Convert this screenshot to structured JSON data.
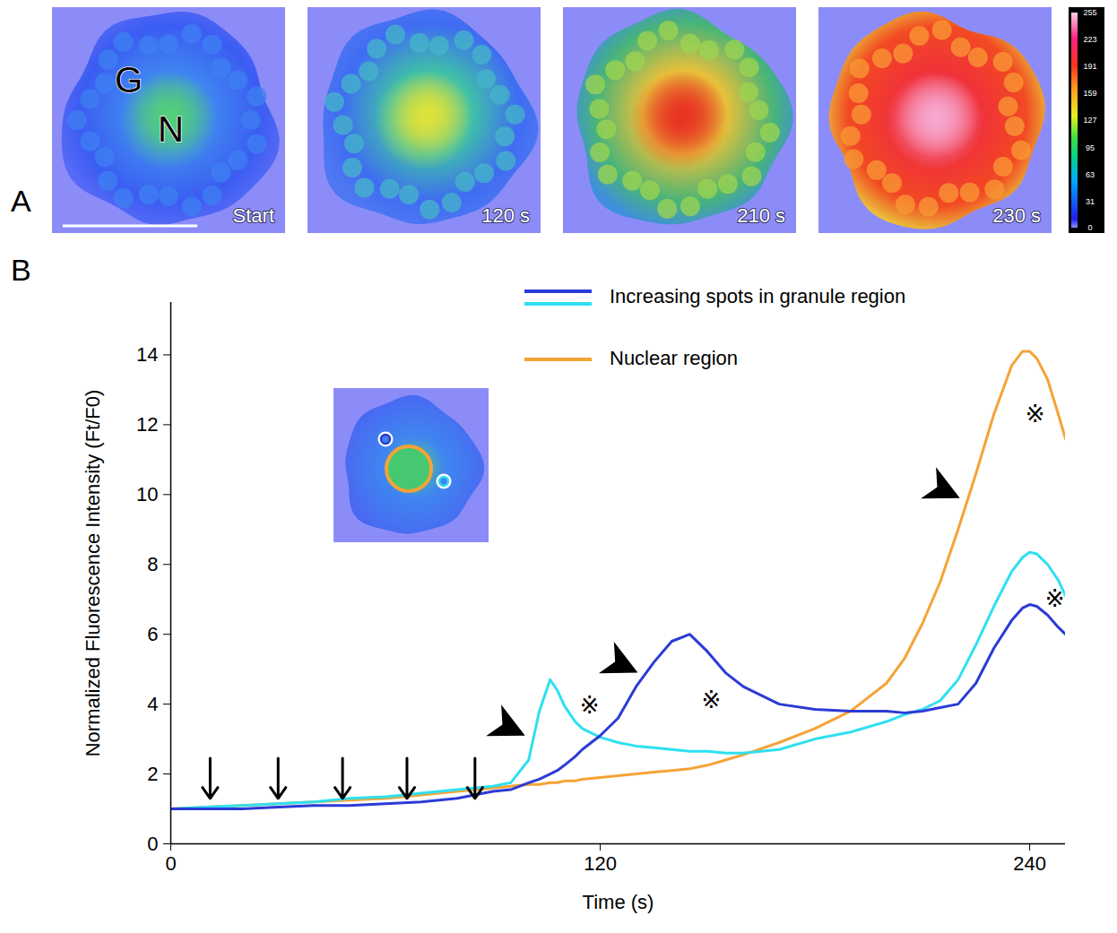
{
  "panel_labels": [
    "A",
    "B"
  ],
  "panel_a": {
    "frames": [
      "Start",
      "120 s",
      "210 s",
      "230 s"
    ],
    "region_labels": [
      "G",
      "N"
    ],
    "colorbar": {
      "range": [
        0,
        255
      ],
      "ticks": [
        0,
        31,
        63,
        95,
        127,
        159,
        191,
        223,
        255
      ]
    }
  },
  "chart_data": {
    "type": "line",
    "x_label": "Time (s)",
    "y_label": "Normalized Fluorescence Intensity (Ft/F0)",
    "x": [
      0,
      10,
      20,
      30,
      40,
      50,
      60,
      70,
      80,
      90,
      95,
      100,
      103,
      106,
      108,
      110,
      113,
      115,
      120,
      125,
      130,
      135,
      140,
      145,
      150,
      155,
      160,
      170,
      180,
      190,
      200,
      205,
      210,
      215,
      220,
      225,
      230,
      235,
      238,
      240,
      242,
      245,
      248,
      250
    ],
    "series": [
      {
        "name": "Increasing spots in granule region",
        "color": "#2b3bd6",
        "values": [
          1.0,
          1.0,
          1.0,
          1.05,
          1.1,
          1.1,
          1.15,
          1.2,
          1.3,
          1.5,
          1.55,
          1.75,
          1.85,
          2.0,
          2.1,
          2.25,
          2.5,
          2.7,
          3.1,
          3.6,
          4.5,
          5.2,
          5.8,
          6.0,
          5.5,
          4.9,
          4.5,
          4.0,
          3.85,
          3.8,
          3.8,
          3.75,
          3.8,
          3.9,
          4.0,
          4.6,
          5.6,
          6.4,
          6.75,
          6.85,
          6.8,
          6.55,
          6.2,
          6.0
        ]
      },
      {
        "name": "Increasing spots in granule region",
        "color": "#2ee0f0",
        "values": [
          1.0,
          1.05,
          1.1,
          1.15,
          1.2,
          1.3,
          1.35,
          1.45,
          1.55,
          1.65,
          1.75,
          2.4,
          3.8,
          4.7,
          4.4,
          3.95,
          3.5,
          3.3,
          3.05,
          2.9,
          2.8,
          2.75,
          2.7,
          2.65,
          2.65,
          2.6,
          2.6,
          2.7,
          3.0,
          3.2,
          3.5,
          3.7,
          3.85,
          4.1,
          4.7,
          5.7,
          6.8,
          7.8,
          8.2,
          8.35,
          8.3,
          8.0,
          7.55,
          7.1
        ]
      },
      {
        "name": "Nuclear region",
        "color": "#f5a336",
        "values": [
          1.0,
          1.05,
          1.1,
          1.15,
          1.2,
          1.25,
          1.3,
          1.4,
          1.5,
          1.6,
          1.65,
          1.7,
          1.7,
          1.75,
          1.75,
          1.8,
          1.8,
          1.85,
          1.9,
          1.95,
          2.0,
          2.05,
          2.1,
          2.15,
          2.25,
          2.4,
          2.55,
          2.9,
          3.3,
          3.8,
          4.6,
          5.3,
          6.3,
          7.5,
          9.0,
          10.6,
          12.3,
          13.7,
          14.1,
          14.1,
          13.9,
          13.3,
          12.3,
          11.6
        ]
      }
    ],
    "xlim": [
      0,
      250
    ],
    "xticks": [
      0,
      120,
      240
    ],
    "ylim": [
      0,
      15.5
    ],
    "yticks": [
      0,
      2,
      4,
      6,
      8,
      10,
      12,
      14
    ],
    "grid": false,
    "legend": "top",
    "stimuli": {
      "times": [
        11,
        30,
        48,
        66,
        85
      ],
      "from": 2.45,
      "to": 1.3
    },
    "peak_arrows": [
      {
        "x": 99,
        "y": 3.1
      },
      {
        "x": 130.5,
        "y": 4.9
      },
      {
        "x": 220.5,
        "y": 9.9
      }
    ],
    "annotations": [
      {
        "text": "※",
        "x": 117,
        "y": 3.95
      },
      {
        "text": "※",
        "x": 151,
        "y": 4.1
      },
      {
        "text": "※",
        "x": 241.5,
        "y": 12.3
      },
      {
        "text": "※",
        "x": 247,
        "y": 7.0
      }
    ]
  }
}
